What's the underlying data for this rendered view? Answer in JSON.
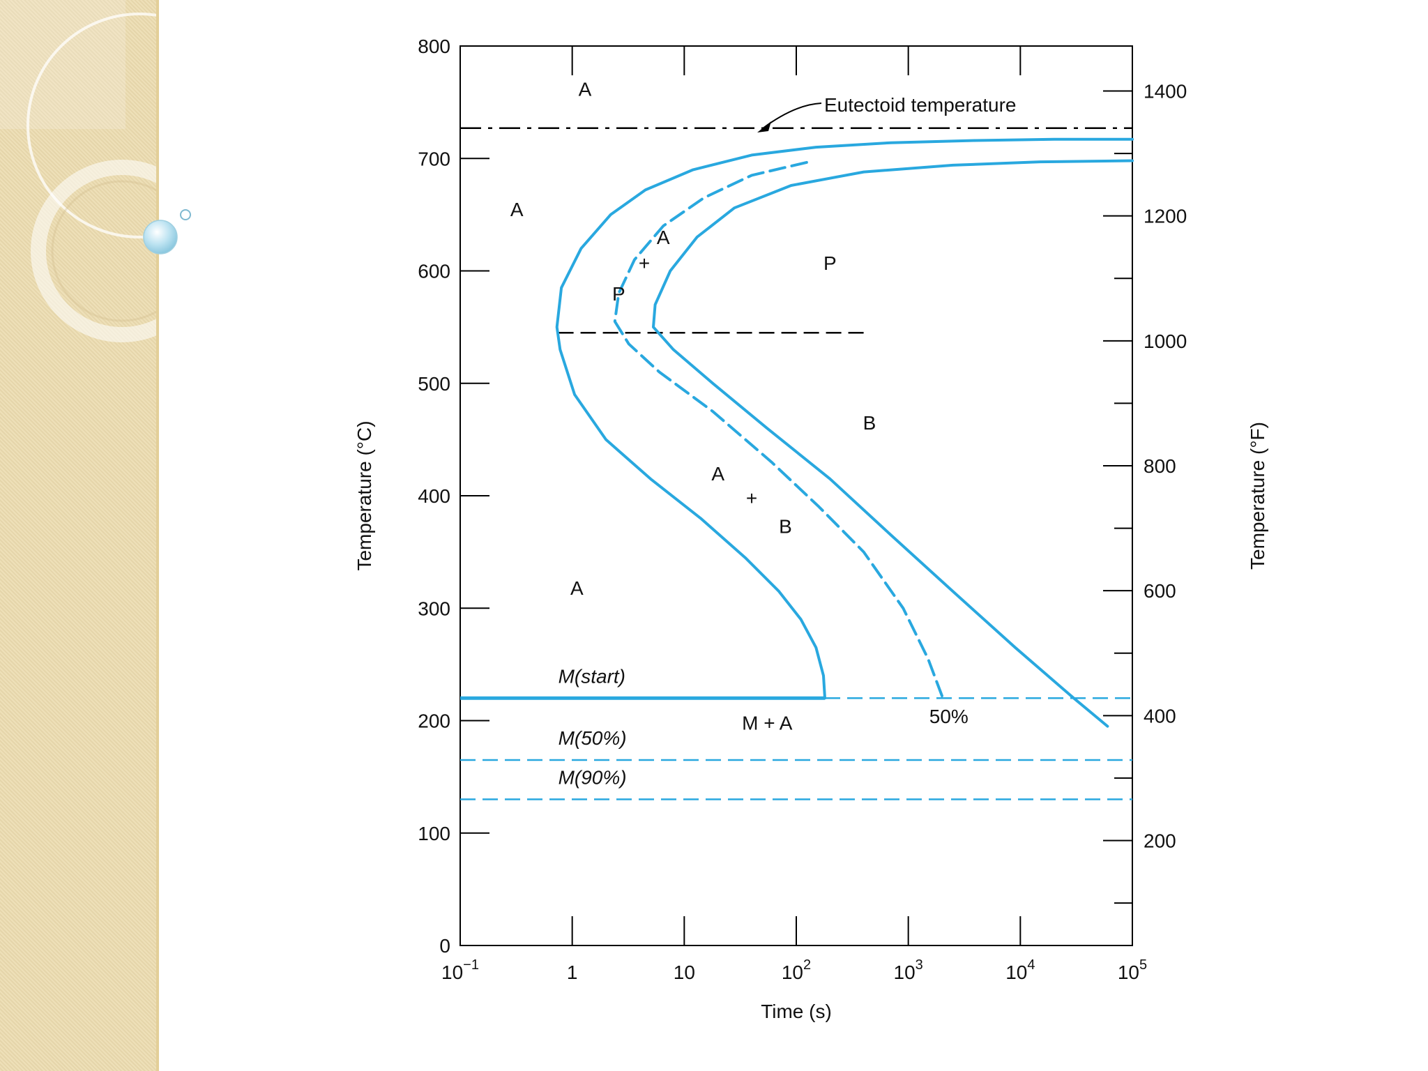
{
  "chart_data": {
    "type": "line",
    "xlabel": "Time (s)",
    "ylabel": "Temperature (°C)",
    "y2label": "Temperature (°F)",
    "x_scale": "log",
    "xlim": [
      0.1,
      100000
    ],
    "ylim": [
      0,
      800
    ],
    "x_ticks": [
      {
        "value": 0.1,
        "base": "10",
        "exp": "−1"
      },
      {
        "value": 1,
        "base": "1",
        "exp": ""
      },
      {
        "value": 10,
        "base": "10",
        "exp": ""
      },
      {
        "value": 100,
        "base": "10",
        "exp": "2"
      },
      {
        "value": 1000,
        "base": "10",
        "exp": "3"
      },
      {
        "value": 10000,
        "base": "10",
        "exp": "4"
      },
      {
        "value": 100000,
        "base": "10",
        "exp": "5"
      }
    ],
    "y_ticks": [
      0,
      100,
      200,
      300,
      400,
      500,
      600,
      700,
      800
    ],
    "y2_ticks": [
      {
        "label": "200",
        "value": 200
      },
      {
        "label": "400",
        "value": 400
      },
      {
        "label": "600",
        "value": 600
      },
      {
        "label": "800",
        "value": 800
      },
      {
        "label": "1000",
        "value": 1000
      },
      {
        "label": "1200",
        "value": 1200
      },
      {
        "label": "1400",
        "value": 1400
      }
    ],
    "horizontal_lines": [
      {
        "label": "Eutectoid temperature",
        "y": 727,
        "style": "dashdot",
        "color": "#000000"
      },
      {
        "label": "",
        "y": 545,
        "x_range": [
          0.75,
          400
        ],
        "style": "dashed",
        "color": "#000000"
      },
      {
        "label": "M(start)",
        "y": 220,
        "x_range": [
          0.1,
          180
        ],
        "style": "solid",
        "color": "#29a8df"
      },
      {
        "label": "",
        "y": 220,
        "x_range": [
          180,
          100000
        ],
        "style": "dashed",
        "color": "#29a8df"
      },
      {
        "label": "M(50%)",
        "y": 165,
        "style": "dashed",
        "color": "#29a8df"
      },
      {
        "label": "M(90%)",
        "y": 130,
        "style": "dashed",
        "color": "#29a8df"
      }
    ],
    "series": [
      {
        "style": "solid",
        "color": "#29a8df",
        "points": [
          [
            180,
            220
          ],
          [
            175,
            240
          ],
          [
            150,
            265
          ],
          [
            110,
            290
          ],
          [
            70,
            315
          ],
          [
            35,
            345
          ],
          [
            14,
            380
          ],
          [
            5,
            415
          ],
          [
            2,
            450
          ],
          [
            1.05,
            490
          ],
          [
            0.78,
            530
          ],
          [
            0.73,
            550
          ],
          [
            0.8,
            585
          ],
          [
            1.2,
            620
          ],
          [
            2.2,
            650
          ],
          [
            4.5,
            672
          ],
          [
            12,
            690
          ],
          [
            40,
            703
          ],
          [
            150,
            710
          ],
          [
            700,
            714
          ],
          [
            4000,
            716
          ],
          [
            20000,
            717
          ],
          [
            100000,
            717
          ]
        ]
      },
      {
        "style": "dashed",
        "color": "#29a8df",
        "points": [
          [
            2000,
            222
          ],
          [
            1500,
            255
          ],
          [
            900,
            300
          ],
          [
            400,
            350
          ],
          [
            160,
            390
          ],
          [
            60,
            430
          ],
          [
            18,
            475
          ],
          [
            6,
            510
          ],
          [
            3.2,
            535
          ],
          [
            2.4,
            555
          ],
          [
            2.6,
            580
          ],
          [
            3.6,
            610
          ],
          [
            6.5,
            640
          ],
          [
            15,
            665
          ],
          [
            40,
            685
          ],
          [
            130,
            697
          ]
        ]
      },
      {
        "style": "solid",
        "color": "#29a8df",
        "points": [
          [
            60000,
            195
          ],
          [
            30000,
            220
          ],
          [
            9000,
            265
          ],
          [
            2500,
            315
          ],
          [
            700,
            365
          ],
          [
            200,
            415
          ],
          [
            55,
            460
          ],
          [
            18,
            500
          ],
          [
            8,
            530
          ],
          [
            5.3,
            550
          ],
          [
            5.5,
            570
          ],
          [
            7.5,
            600
          ],
          [
            13,
            630
          ],
          [
            28,
            656
          ],
          [
            90,
            676
          ],
          [
            400,
            688
          ],
          [
            2500,
            694
          ],
          [
            15000,
            697
          ],
          [
            100000,
            698
          ]
        ]
      }
    ],
    "region_labels": [
      {
        "text": "A",
        "x": 1.3,
        "y": 762
      },
      {
        "text": "A",
        "x": 0.32,
        "y": 655
      },
      {
        "text": "A",
        "x": 6.5,
        "y": 630
      },
      {
        "text": "+",
        "x": 4.4,
        "y": 607
      },
      {
        "text": "P",
        "x": 2.6,
        "y": 580
      },
      {
        "text": "P",
        "x": 200,
        "y": 607
      },
      {
        "text": "B",
        "x": 450,
        "y": 465
      },
      {
        "text": "A",
        "x": 20,
        "y": 420
      },
      {
        "text": "+",
        "x": 40,
        "y": 398
      },
      {
        "text": "B",
        "x": 80,
        "y": 373
      },
      {
        "text": "A",
        "x": 1.1,
        "y": 318
      },
      {
        "text": "M + A",
        "x": 55,
        "y": 198
      },
      {
        "text": "50%",
        "x": 2300,
        "y": 204
      }
    ]
  }
}
